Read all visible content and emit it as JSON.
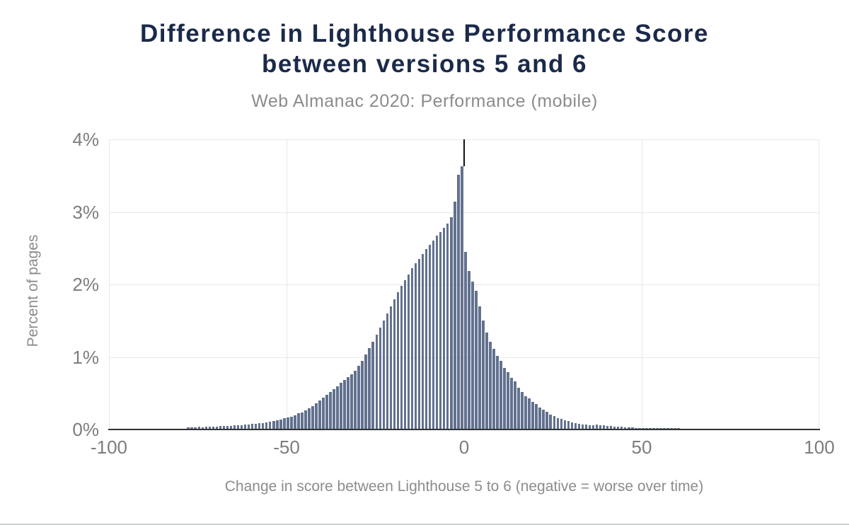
{
  "page": {
    "background_color": "#ffffff",
    "bottom_border_color": "#c9cdd1"
  },
  "header": {
    "title": "Difference in Lighthouse Performance Score\nbetween versions 5 and 6",
    "subtitle": "Web Almanac 2020: Performance (mobile)",
    "title_color": "#1b2a4a",
    "subtitle_color": "#8c8c8c"
  },
  "chart_data": {
    "type": "bar",
    "title": "Difference in Lighthouse Performance Score between versions 5 and 6",
    "subtitle": "Web Almanac 2020: Performance (mobile)",
    "xlabel": "Change in score between Lighthouse 5 to 6 (negative = worse over time)",
    "ylabel": "Percent of pages",
    "xlim": [
      -100,
      100
    ],
    "ylim": [
      0,
      4
    ],
    "x_ticks": [
      -100,
      -50,
      0,
      50,
      100
    ],
    "x_tick_labels": [
      "-100",
      "-50",
      "0",
      "50",
      "100"
    ],
    "y_ticks": [
      0,
      1,
      2,
      3,
      4
    ],
    "y_tick_labels": [
      "0%",
      "1%",
      "2%",
      "3%",
      "4%"
    ],
    "y_unit": "percent of pages",
    "x_bin_start": -100,
    "x_bin_size": 1,
    "zero_reference_line_x": 0,
    "grid": true,
    "legend": false,
    "bar_color": "#62718e",
    "gridline_color": "#e8e8e8",
    "axis_line_color": "#333333",
    "zero_line_color": "#111111",
    "tick_label_color": "#7d7d7d",
    "axis_title_color": "#8c8c8c",
    "values": [
      0,
      0,
      0,
      0,
      0,
      0,
      0,
      0,
      0,
      0,
      0,
      0,
      0,
      0,
      0,
      0,
      0,
      0,
      0,
      0,
      0,
      0,
      0.03,
      0.03,
      0.03,
      0.04,
      0.03,
      0.04,
      0.04,
      0.04,
      0.04,
      0.05,
      0.05,
      0.05,
      0.05,
      0.06,
      0.06,
      0.06,
      0.07,
      0.07,
      0.08,
      0.08,
      0.09,
      0.09,
      0.1,
      0.11,
      0.12,
      0.13,
      0.14,
      0.16,
      0.17,
      0.18,
      0.2,
      0.22,
      0.23,
      0.26,
      0.29,
      0.32,
      0.36,
      0.4,
      0.44,
      0.48,
      0.52,
      0.56,
      0.6,
      0.64,
      0.68,
      0.72,
      0.76,
      0.81,
      0.88,
      0.95,
      1.03,
      1.12,
      1.21,
      1.31,
      1.41,
      1.5,
      1.6,
      1.7,
      1.8,
      1.89,
      1.98,
      2.06,
      2.14,
      2.22,
      2.29,
      2.35,
      2.42,
      2.49,
      2.55,
      2.61,
      2.67,
      2.72,
      2.78,
      2.84,
      2.93,
      3.14,
      3.51,
      3.63,
      2.45,
      2.19,
      2.04,
      1.91,
      1.7,
      1.5,
      1.34,
      1.21,
      1.11,
      1.02,
      0.95,
      0.85,
      0.79,
      0.71,
      0.66,
      0.58,
      0.52,
      0.46,
      0.43,
      0.38,
      0.35,
      0.3,
      0.27,
      0.24,
      0.21,
      0.19,
      0.16,
      0.15,
      0.13,
      0.12,
      0.1,
      0.09,
      0.08,
      0.07,
      0.07,
      0.06,
      0.06,
      0.07,
      0.06,
      0.06,
      0.05,
      0.05,
      0.04,
      0.04,
      0.04,
      0.03,
      0.03,
      0.03,
      0.02,
      0.02,
      0.02,
      0.02,
      0.02,
      0.02,
      0.02,
      0.02,
      0.02,
      0.02,
      0.02,
      0.02,
      0.02,
      0,
      0,
      0,
      0,
      0,
      0,
      0,
      0,
      0,
      0,
      0,
      0,
      0,
      0,
      0,
      0,
      0,
      0,
      0,
      0,
      0,
      0,
      0,
      0,
      0,
      0,
      0,
      0,
      0,
      0,
      0,
      0,
      0,
      0,
      0,
      0,
      0,
      0,
      0
    ]
  }
}
